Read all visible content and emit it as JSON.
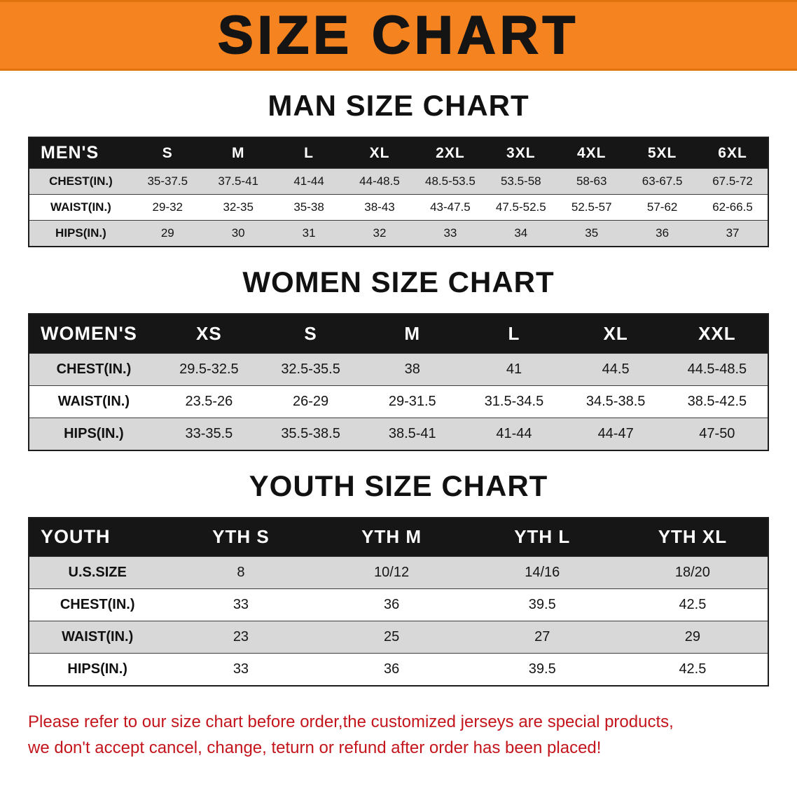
{
  "banner": {
    "title": "SIZE CHART"
  },
  "sections": [
    {
      "name": "men",
      "heading": "MAN SIZE CHART",
      "header_label": "MEN'S",
      "columns": [
        "S",
        "M",
        "L",
        "XL",
        "2XL",
        "3XL",
        "4XL",
        "5XL",
        "6XL"
      ],
      "rows": [
        {
          "label": "CHEST(IN.)",
          "values": [
            "35-37.5",
            "37.5-41",
            "41-44",
            "44-48.5",
            "48.5-53.5",
            "53.5-58",
            "58-63",
            "63-67.5",
            "67.5-72"
          ]
        },
        {
          "label": "WAIST(IN.)",
          "values": [
            "29-32",
            "32-35",
            "35-38",
            "38-43",
            "43-47.5",
            "47.5-52.5",
            "52.5-57",
            "57-62",
            "62-66.5"
          ]
        },
        {
          "label": "HIPS(IN.)",
          "values": [
            "29",
            "30",
            "31",
            "32",
            "33",
            "34",
            "35",
            "36",
            "37"
          ]
        }
      ]
    },
    {
      "name": "women",
      "heading": "WOMEN SIZE CHART",
      "header_label": "WOMEN'S",
      "columns": [
        "XS",
        "S",
        "M",
        "L",
        "XL",
        "XXL"
      ],
      "rows": [
        {
          "label": "CHEST(IN.)",
          "values": [
            "29.5-32.5",
            "32.5-35.5",
            "38",
            "41",
            "44.5",
            "44.5-48.5"
          ]
        },
        {
          "label": "WAIST(IN.)",
          "values": [
            "23.5-26",
            "26-29",
            "29-31.5",
            "31.5-34.5",
            "34.5-38.5",
            "38.5-42.5"
          ]
        },
        {
          "label": "HIPS(IN.)",
          "values": [
            "33-35.5",
            "35.5-38.5",
            "38.5-41",
            "41-44",
            "44-47",
            "47-50"
          ]
        }
      ]
    },
    {
      "name": "youth",
      "heading": "YOUTH SIZE CHART",
      "header_label": "YOUTH",
      "columns": [
        "YTH S",
        "YTH M",
        "YTH L",
        "YTH XL"
      ],
      "rows": [
        {
          "label": "U.S.SIZE",
          "values": [
            "8",
            "10/12",
            "14/16",
            "18/20"
          ]
        },
        {
          "label": "CHEST(IN.)",
          "values": [
            "33",
            "36",
            "39.5",
            "42.5"
          ]
        },
        {
          "label": "WAIST(IN.)",
          "values": [
            "23",
            "25",
            "27",
            "29"
          ]
        },
        {
          "label": "HIPS(IN.)",
          "values": [
            "33",
            "36",
            "39.5",
            "42.5"
          ]
        }
      ]
    }
  ],
  "notice": {
    "lines": [
      "Please refer to our size chart before order,the customized jerseys are special products,",
      "we don't accept cancel, change, teturn or refund after order has been placed!"
    ]
  },
  "colors": {
    "banner-orange": "#f5831f",
    "header-black": "#161616",
    "row-gray": "#d8d8d8",
    "notice-red": "#c4151c"
  }
}
